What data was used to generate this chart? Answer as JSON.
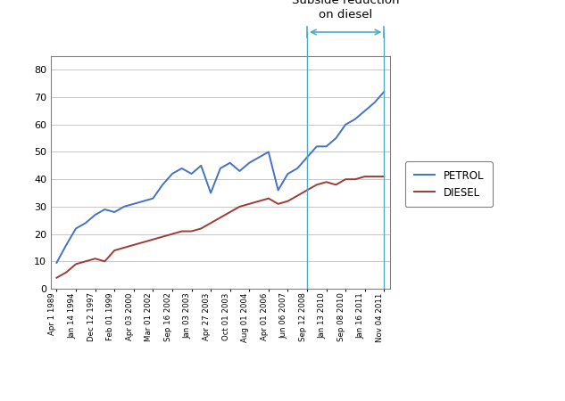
{
  "bg_color": "#ffffff",
  "outer_bg_color": "#dce6f1",
  "plot_bg_color": "#ffffff",
  "x_tick_labels": [
    "Apr 1 1989",
    "Jan 14 1994",
    "Dec 12 1997",
    "Feb 01 1999",
    "Apr 03 2000",
    "Mar 01 2002",
    "Sep 16 2002",
    "Jan 03 2003",
    "Apr 27 2003",
    "Oct 01 2003",
    "Aug 01 2004",
    "Apr 01 2006",
    "Jun 06 2007",
    "Sep 12 2008",
    "Jan 13 2010",
    "Sep 08 2010",
    "Jan 16 2011",
    "Nov 04 2011"
  ],
  "petrol_values": [
    9.5,
    16,
    22,
    24,
    27,
    29,
    28,
    30,
    31,
    32,
    33,
    38,
    42,
    44,
    42,
    45,
    35,
    44,
    46,
    43,
    46,
    48,
    50,
    36,
    42,
    44,
    48,
    52,
    52,
    55,
    60,
    62,
    65,
    68,
    72
  ],
  "diesel_values": [
    4,
    6,
    9,
    10,
    11,
    10,
    14,
    15,
    16,
    17,
    18,
    19,
    20,
    21,
    21,
    22,
    24,
    26,
    28,
    30,
    31,
    32,
    33,
    31,
    32,
    34,
    36,
    38,
    39,
    38,
    40,
    40,
    41,
    41,
    41
  ],
  "petrol_color": "#4472c4",
  "diesel_color": "#9e3b34",
  "arrow_color": "#4bacc6",
  "vline_color": "#4bacc6",
  "ylim": [
    0,
    85
  ],
  "yticks": [
    0,
    10,
    20,
    30,
    40,
    50,
    60,
    70,
    80
  ],
  "legend_petrol": "PETROL",
  "legend_diesel": "DIESEL",
  "annotation_text_line1": "Subside reduction",
  "annotation_text_line2": "on diesel",
  "vline_tick_index": 13,
  "n_ticks": 18
}
